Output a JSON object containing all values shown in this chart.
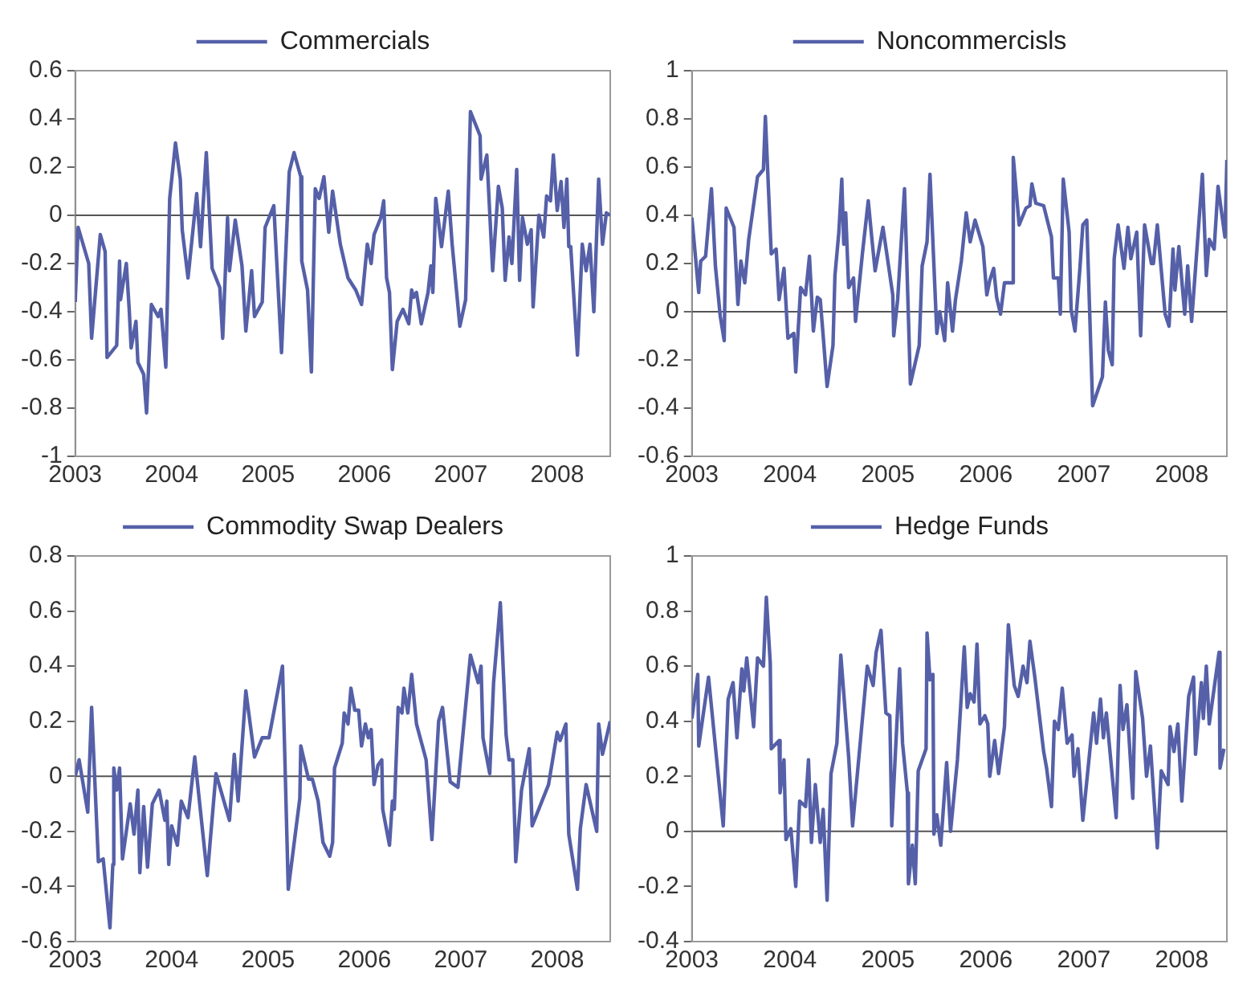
{
  "chart_data": [
    {
      "type": "line",
      "legend": "top",
      "marker": "none",
      "xlim": [
        2003,
        2008.55
      ],
      "xticks": [
        2003,
        2004,
        2005,
        2006,
        2007,
        2008
      ],
      "ylim": [
        -1,
        0.6
      ],
      "yticks": [
        -1,
        -0.8,
        -0.6,
        -0.4,
        -0.2,
        0,
        0.2,
        0.4,
        0.6
      ],
      "ref_lines": [
        {
          "axis": "y",
          "value": 0,
          "color": "#555555"
        }
      ],
      "x": [
        2003.0,
        2003.03,
        2003.14,
        2003.17,
        2003.26,
        2003.31,
        2003.33,
        2003.43,
        2003.46,
        2003.47,
        2003.53,
        2003.56,
        2003.58,
        2003.63,
        2003.65,
        2003.71,
        2003.74,
        2003.79,
        2003.86,
        2003.89,
        2003.94,
        2003.98,
        2004.04,
        2004.09,
        2004.11,
        2004.17,
        2004.26,
        2004.3,
        2004.36,
        2004.42,
        2004.5,
        2004.53,
        2004.58,
        2004.6,
        2004.66,
        2004.73,
        2004.77,
        2004.83,
        2004.86,
        2004.94,
        2004.97,
        2005.06,
        2005.14,
        2005.22,
        2005.27,
        2005.34,
        2005.35,
        2005.41,
        2005.45,
        2005.49,
        2005.53,
        2005.58,
        2005.63,
        2005.67,
        2005.75,
        2005.83,
        2005.91,
        2005.97,
        2006.03,
        2006.07,
        2006.1,
        2006.17,
        2006.2,
        2006.23,
        2006.26,
        2006.29,
        2006.34,
        2006.4,
        2006.46,
        2006.49,
        2006.51,
        2006.54,
        2006.59,
        2006.66,
        2006.69,
        2006.71,
        2006.74,
        2006.8,
        2006.87,
        2006.91,
        2006.99,
        2007.05,
        2007.1,
        2007.2,
        2007.21,
        2007.27,
        2007.33,
        2007.39,
        2007.43,
        2007.46,
        2007.5,
        2007.53,
        2007.58,
        2007.61,
        2007.64,
        2007.69,
        2007.73,
        2007.75,
        2007.81,
        2007.86,
        2007.89,
        2007.93,
        2007.96,
        2008.0,
        2008.04,
        2008.07,
        2008.1,
        2008.12,
        2008.14,
        2008.21,
        2008.26,
        2008.3,
        2008.34,
        2008.38,
        2008.43,
        2008.47,
        2008.51,
        2008.55
      ],
      "series": [
        {
          "name": "Commercials",
          "color": "#5560a8",
          "values": [
            -0.36,
            -0.05,
            -0.2,
            -0.51,
            -0.08,
            -0.15,
            -0.59,
            -0.54,
            -0.19,
            -0.35,
            -0.2,
            -0.39,
            -0.55,
            -0.44,
            -0.61,
            -0.66,
            -0.82,
            -0.37,
            -0.42,
            -0.39,
            -0.63,
            0.07,
            0.3,
            0.15,
            -0.06,
            -0.26,
            0.09,
            -0.13,
            0.26,
            -0.22,
            -0.3,
            -0.51,
            -0.01,
            -0.23,
            -0.02,
            -0.21,
            -0.48,
            -0.23,
            -0.42,
            -0.36,
            -0.05,
            0.04,
            -0.57,
            0.18,
            0.26,
            0.16,
            -0.19,
            -0.31,
            -0.65,
            0.11,
            0.07,
            0.16,
            -0.07,
            0.1,
            -0.12,
            -0.26,
            -0.31,
            -0.37,
            -0.12,
            -0.2,
            -0.08,
            -0.01,
            0.06,
            -0.26,
            -0.32,
            -0.64,
            -0.44,
            -0.39,
            -0.45,
            -0.31,
            -0.34,
            -0.32,
            -0.45,
            -0.32,
            -0.21,
            -0.32,
            0.07,
            -0.13,
            0.1,
            -0.12,
            -0.46,
            -0.35,
            0.43,
            0.33,
            0.15,
            0.25,
            -0.23,
            0.12,
            0.03,
            -0.27,
            -0.09,
            -0.2,
            0.19,
            -0.27,
            -0.01,
            -0.12,
            -0.06,
            -0.38,
            0.0,
            -0.09,
            0.08,
            0.06,
            0.25,
            0.02,
            0.14,
            -0.05,
            0.15,
            -0.13,
            -0.13,
            -0.58,
            -0.12,
            -0.23,
            -0.12,
            -0.4,
            0.15,
            -0.12,
            0.01,
            0.0
          ]
        }
      ]
    },
    {
      "type": "line",
      "legend": "top",
      "marker": "none",
      "xlim": [
        2003,
        2008.46
      ],
      "xticks": [
        2003,
        2004,
        2005,
        2006,
        2007,
        2008
      ],
      "ylim": [
        -0.6,
        1
      ],
      "yticks": [
        -0.6,
        -0.4,
        -0.2,
        0,
        0.2,
        0.4,
        0.6,
        0.8,
        1
      ],
      "ref_lines": [
        {
          "axis": "y",
          "value": 0,
          "color": "#555555"
        }
      ],
      "x": [
        2003.0,
        2003.07,
        2003.09,
        2003.14,
        2003.2,
        2003.24,
        2003.29,
        2003.33,
        2003.35,
        2003.43,
        2003.47,
        2003.5,
        2003.54,
        2003.58,
        2003.67,
        2003.73,
        2003.75,
        2003.81,
        2003.86,
        2003.89,
        2003.94,
        2003.98,
        2004.04,
        2004.06,
        2004.11,
        2004.16,
        2004.2,
        2004.24,
        2004.28,
        2004.31,
        2004.34,
        2004.38,
        2004.44,
        2004.46,
        2004.5,
        2004.53,
        2004.55,
        2004.57,
        2004.6,
        2004.65,
        2004.67,
        2004.74,
        2004.8,
        2004.84,
        2004.87,
        2004.95,
        2005.0,
        2005.05,
        2005.06,
        2005.1,
        2005.17,
        2005.19,
        2005.23,
        2005.32,
        2005.35,
        2005.4,
        2005.43,
        2005.5,
        2005.53,
        2005.58,
        2005.61,
        2005.66,
        2005.69,
        2005.75,
        2005.8,
        2005.84,
        2005.89,
        2005.97,
        2006.01,
        2006.04,
        2006.08,
        2006.11,
        2006.15,
        2006.19,
        2006.27,
        2006.28,
        2006.34,
        2006.41,
        2006.45,
        2006.47,
        2006.51,
        2006.59,
        2006.67,
        2006.69,
        2006.74,
        2006.76,
        2006.79,
        2006.85,
        2006.87,
        2006.91,
        2006.96,
        2006.99,
        2007.03,
        2007.09,
        2007.19,
        2007.22,
        2007.25,
        2007.29,
        2007.31,
        2007.35,
        2007.41,
        2007.45,
        2007.48,
        2007.54,
        2007.58,
        2007.62,
        2007.69,
        2007.71,
        2007.75,
        2007.83,
        2007.87,
        2007.91,
        2007.93,
        2007.97,
        2008.03,
        2008.06,
        2008.1,
        2008.16,
        2008.21,
        2008.25,
        2008.28,
        2008.33,
        2008.37,
        2008.44,
        2008.46
      ],
      "series": [
        {
          "name": "Noncommercisls",
          "color": "#5560a8",
          "values": [
            0.39,
            0.08,
            0.21,
            0.23,
            0.51,
            0.19,
            -0.02,
            -0.12,
            0.43,
            0.35,
            0.03,
            0.21,
            0.12,
            0.3,
            0.56,
            0.59,
            0.81,
            0.24,
            0.26,
            0.05,
            0.18,
            -0.11,
            -0.09,
            -0.25,
            0.1,
            0.07,
            0.23,
            -0.08,
            0.06,
            0.05,
            -0.1,
            -0.31,
            -0.14,
            0.15,
            0.33,
            0.55,
            0.28,
            0.41,
            0.1,
            0.14,
            -0.04,
            0.24,
            0.46,
            0.29,
            0.17,
            0.35,
            0.21,
            0.07,
            -0.1,
            0.05,
            0.51,
            0.25,
            -0.3,
            -0.14,
            0.19,
            0.29,
            0.57,
            -0.09,
            0.0,
            -0.12,
            0.12,
            -0.08,
            0.05,
            0.21,
            0.41,
            0.29,
            0.38,
            0.27,
            0.07,
            0.13,
            0.18,
            0.06,
            -0.01,
            0.12,
            0.12,
            0.64,
            0.36,
            0.43,
            0.44,
            0.53,
            0.45,
            0.44,
            0.31,
            0.14,
            0.14,
            -0.01,
            0.55,
            0.33,
            0.01,
            -0.08,
            0.18,
            0.36,
            0.38,
            -0.39,
            -0.27,
            0.04,
            -0.16,
            -0.22,
            0.22,
            0.36,
            0.18,
            0.35,
            0.22,
            0.33,
            -0.1,
            0.36,
            0.2,
            0.2,
            0.36,
            -0.01,
            -0.06,
            0.26,
            0.09,
            0.27,
            -0.01,
            0.19,
            -0.04,
            0.29,
            0.57,
            0.15,
            0.3,
            0.26,
            0.52,
            0.31,
            0.63
          ]
        }
      ]
    },
    {
      "type": "line",
      "legend": "top",
      "marker": "none",
      "xlim": [
        2003,
        2008.55
      ],
      "xticks": [
        2003,
        2004,
        2005,
        2006,
        2007,
        2008
      ],
      "ylim": [
        -0.6,
        0.8
      ],
      "yticks": [
        -0.6,
        -0.4,
        -0.2,
        0,
        0.2,
        0.4,
        0.6,
        0.8
      ],
      "ref_lines": [
        {
          "axis": "y",
          "value": 0,
          "color": "#555555"
        }
      ],
      "x": [
        2003.0,
        2003.04,
        2003.13,
        2003.17,
        2003.24,
        2003.29,
        2003.36,
        2003.39,
        2003.4,
        2003.43,
        2003.46,
        2003.49,
        2003.57,
        2003.61,
        2003.65,
        2003.67,
        2003.71,
        2003.75,
        2003.8,
        2003.87,
        2003.93,
        2003.95,
        2003.97,
        2004.0,
        2004.06,
        2004.1,
        2004.17,
        2004.24,
        2004.37,
        2004.46,
        2004.6,
        2004.65,
        2004.69,
        2004.77,
        2004.86,
        2004.94,
        2005.01,
        2005.15,
        2005.21,
        2005.33,
        2005.34,
        2005.42,
        2005.46,
        2005.52,
        2005.57,
        2005.64,
        2005.67,
        2005.69,
        2005.77,
        2005.79,
        2005.83,
        2005.86,
        2005.9,
        2005.94,
        2005.97,
        2006.01,
        2006.04,
        2006.07,
        2006.1,
        2006.14,
        2006.18,
        2006.19,
        2006.26,
        2006.29,
        2006.31,
        2006.35,
        2006.39,
        2006.41,
        2006.45,
        2006.49,
        2006.54,
        2006.64,
        2006.7,
        2006.77,
        2006.81,
        2006.89,
        2006.97,
        2007.1,
        2007.18,
        2007.21,
        2007.23,
        2007.3,
        2007.34,
        2007.41,
        2007.47,
        2007.5,
        2007.54,
        2007.57,
        2007.63,
        2007.71,
        2007.74,
        2007.91,
        2008.0,
        2008.03,
        2008.09,
        2008.12,
        2008.21,
        2008.24,
        2008.3,
        2008.41,
        2008.43,
        2008.47,
        2008.55
      ],
      "series": [
        {
          "name": "Commodity Swap Dealers",
          "color": "#5560a8",
          "values": [
            0.0,
            0.06,
            -0.13,
            0.25,
            -0.31,
            -0.3,
            -0.55,
            -0.32,
            0.03,
            -0.05,
            0.03,
            -0.3,
            -0.1,
            -0.21,
            -0.05,
            -0.35,
            -0.11,
            -0.33,
            -0.1,
            -0.05,
            -0.16,
            -0.09,
            -0.32,
            -0.18,
            -0.25,
            -0.09,
            -0.15,
            0.07,
            -0.36,
            0.01,
            -0.16,
            0.08,
            -0.09,
            0.31,
            0.07,
            0.14,
            0.14,
            0.4,
            -0.41,
            -0.08,
            0.11,
            -0.01,
            -0.01,
            -0.09,
            -0.24,
            -0.29,
            -0.24,
            0.03,
            0.12,
            0.23,
            0.19,
            0.32,
            0.24,
            0.24,
            0.11,
            0.19,
            0.14,
            0.17,
            -0.03,
            0.04,
            0.06,
            -0.12,
            -0.25,
            -0.09,
            -0.12,
            0.25,
            0.23,
            0.32,
            0.23,
            0.37,
            0.19,
            0.06,
            -0.23,
            0.2,
            0.25,
            -0.02,
            -0.04,
            0.44,
            0.34,
            0.4,
            0.14,
            0.01,
            0.34,
            0.63,
            0.15,
            0.06,
            0.06,
            -0.31,
            -0.05,
            0.1,
            -0.18,
            -0.03,
            0.16,
            0.13,
            0.19,
            -0.21,
            -0.41,
            -0.19,
            -0.03,
            -0.2,
            0.19,
            0.08,
            0.2
          ]
        }
      ]
    },
    {
      "type": "line",
      "legend": "top",
      "marker": "none",
      "xlim": [
        2003,
        2008.46
      ],
      "xticks": [
        2003,
        2004,
        2005,
        2006,
        2007,
        2008
      ],
      "ylim": [
        -0.4,
        1
      ],
      "yticks": [
        -0.4,
        -0.2,
        0,
        0.2,
        0.4,
        0.6,
        0.8,
        1
      ],
      "ref_lines": [
        {
          "axis": "y",
          "value": 0,
          "color": "#555555"
        }
      ],
      "x": [
        2003.0,
        2003.06,
        2003.07,
        2003.17,
        2003.32,
        2003.37,
        2003.42,
        2003.46,
        2003.51,
        2003.53,
        2003.56,
        2003.63,
        2003.67,
        2003.73,
        2003.76,
        2003.8,
        2003.81,
        2003.89,
        2003.9,
        2003.94,
        2003.96,
        2004.01,
        2004.06,
        2004.1,
        2004.16,
        2004.19,
        2004.22,
        2004.26,
        2004.31,
        2004.34,
        2004.38,
        2004.42,
        2004.48,
        2004.52,
        2004.6,
        2004.64,
        2004.79,
        2004.85,
        2004.88,
        2004.93,
        2004.98,
        2005.02,
        2005.04,
        2005.12,
        2005.15,
        2005.2,
        2005.21,
        2005.25,
        2005.28,
        2005.31,
        2005.39,
        2005.4,
        2005.43,
        2005.46,
        2005.47,
        2005.5,
        2005.54,
        2005.6,
        2005.64,
        2005.71,
        2005.78,
        2005.81,
        2005.84,
        2005.88,
        2005.91,
        2005.94,
        2005.99,
        2006.02,
        2006.04,
        2006.09,
        2006.13,
        2006.19,
        2006.23,
        2006.29,
        2006.33,
        2006.38,
        2006.42,
        2006.45,
        2006.5,
        2006.59,
        2006.62,
        2006.67,
        2006.7,
        2006.74,
        2006.78,
        2006.83,
        2006.88,
        2006.9,
        2006.94,
        2006.99,
        2007.1,
        2007.13,
        2007.17,
        2007.2,
        2007.23,
        2007.33,
        2007.37,
        2007.4,
        2007.44,
        2007.5,
        2007.53,
        2007.6,
        2007.64,
        2007.68,
        2007.75,
        2007.79,
        2007.86,
        2007.88,
        2007.92,
        2007.96,
        2008.0,
        2008.07,
        2008.12,
        2008.14,
        2008.2,
        2008.22,
        2008.25,
        2008.28,
        2008.38,
        2008.39,
        2008.43
      ],
      "series": [
        {
          "name": "Hedge Funds",
          "color": "#5560a8",
          "values": [
            0.41,
            0.57,
            0.31,
            0.56,
            0.02,
            0.48,
            0.54,
            0.34,
            0.59,
            0.51,
            0.63,
            0.38,
            0.63,
            0.6,
            0.85,
            0.61,
            0.3,
            0.33,
            0.14,
            0.26,
            -0.03,
            0.01,
            -0.2,
            0.11,
            0.09,
            0.26,
            -0.04,
            0.17,
            -0.04,
            0.08,
            -0.25,
            0.21,
            0.32,
            0.64,
            0.27,
            0.02,
            0.6,
            0.53,
            0.65,
            0.73,
            0.43,
            0.42,
            0.02,
            0.59,
            0.32,
            0.14,
            -0.19,
            -0.05,
            -0.19,
            0.22,
            0.3,
            0.72,
            0.55,
            0.57,
            -0.01,
            0.06,
            -0.05,
            0.25,
            0.0,
            0.26,
            0.67,
            0.45,
            0.5,
            0.47,
            0.68,
            0.39,
            0.42,
            0.39,
            0.2,
            0.33,
            0.21,
            0.38,
            0.75,
            0.53,
            0.49,
            0.6,
            0.54,
            0.69,
            0.56,
            0.29,
            0.23,
            0.09,
            0.4,
            0.37,
            0.52,
            0.32,
            0.35,
            0.2,
            0.3,
            0.04,
            0.43,
            0.32,
            0.48,
            0.34,
            0.43,
            0.05,
            0.53,
            0.37,
            0.46,
            0.12,
            0.58,
            0.41,
            0.2,
            0.31,
            -0.06,
            0.22,
            0.17,
            0.38,
            0.29,
            0.39,
            0.11,
            0.49,
            0.56,
            0.28,
            0.54,
            0.41,
            0.6,
            0.39,
            0.65,
            0.23,
            0.3
          ]
        }
      ]
    }
  ]
}
